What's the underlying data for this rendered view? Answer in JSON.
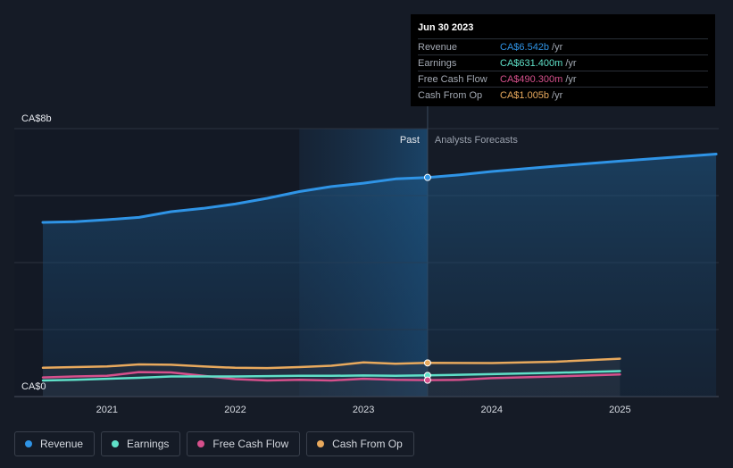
{
  "chart_data": {
    "type": "line",
    "y_axis": {
      "top_label": "CA$8b",
      "bottom_label": "CA$0",
      "ylim": [
        0,
        8
      ]
    },
    "x_ticks": [
      "2021",
      "2022",
      "2023",
      "2024",
      "2025"
    ],
    "past_label": "Past",
    "forecast_label": "Analysts Forecasts",
    "divider_date": 2023.5,
    "series": [
      {
        "name": "Revenue",
        "color": "#2f94e6",
        "points": [
          [
            2020.5,
            5.2
          ],
          [
            2020.75,
            5.22
          ],
          [
            2021.0,
            5.28
          ],
          [
            2021.25,
            5.35
          ],
          [
            2021.5,
            5.52
          ],
          [
            2021.75,
            5.62
          ],
          [
            2022.0,
            5.75
          ],
          [
            2022.25,
            5.92
          ],
          [
            2022.5,
            6.12
          ],
          [
            2022.75,
            6.27
          ],
          [
            2023.0,
            6.37
          ],
          [
            2023.25,
            6.5
          ],
          [
            2023.5,
            6.542
          ],
          [
            2023.75,
            6.62
          ],
          [
            2024.0,
            6.72
          ],
          [
            2024.5,
            6.88
          ],
          [
            2025.0,
            7.03
          ],
          [
            2025.5,
            7.17
          ],
          [
            2025.75,
            7.24
          ]
        ]
      },
      {
        "name": "Earnings",
        "color": "#5fe0c8",
        "points": [
          [
            2020.5,
            0.48
          ],
          [
            2020.75,
            0.5
          ],
          [
            2021.0,
            0.53
          ],
          [
            2021.25,
            0.56
          ],
          [
            2021.5,
            0.6
          ],
          [
            2021.75,
            0.6
          ],
          [
            2022.0,
            0.6
          ],
          [
            2022.25,
            0.61
          ],
          [
            2022.5,
            0.62
          ],
          [
            2022.75,
            0.62
          ],
          [
            2023.0,
            0.63
          ],
          [
            2023.25,
            0.62
          ],
          [
            2023.5,
            0.631
          ],
          [
            2024.0,
            0.67
          ],
          [
            2024.5,
            0.71
          ],
          [
            2025.0,
            0.76
          ]
        ]
      },
      {
        "name": "Free Cash Flow",
        "color": "#d6508c",
        "points": [
          [
            2020.5,
            0.57
          ],
          [
            2020.75,
            0.6
          ],
          [
            2021.0,
            0.62
          ],
          [
            2021.25,
            0.73
          ],
          [
            2021.5,
            0.72
          ],
          [
            2021.75,
            0.62
          ],
          [
            2022.0,
            0.52
          ],
          [
            2022.25,
            0.48
          ],
          [
            2022.5,
            0.5
          ],
          [
            2022.75,
            0.48
          ],
          [
            2023.0,
            0.53
          ],
          [
            2023.25,
            0.5
          ],
          [
            2023.5,
            0.49
          ],
          [
            2023.75,
            0.5
          ],
          [
            2024.0,
            0.55
          ],
          [
            2024.5,
            0.6
          ],
          [
            2025.0,
            0.66
          ]
        ]
      },
      {
        "name": "Cash From Op",
        "color": "#e8a95d",
        "points": [
          [
            2020.5,
            0.86
          ],
          [
            2020.75,
            0.88
          ],
          [
            2021.0,
            0.9
          ],
          [
            2021.25,
            0.96
          ],
          [
            2021.5,
            0.95
          ],
          [
            2021.75,
            0.9
          ],
          [
            2022.0,
            0.86
          ],
          [
            2022.25,
            0.85
          ],
          [
            2022.5,
            0.88
          ],
          [
            2022.75,
            0.92
          ],
          [
            2023.0,
            1.02
          ],
          [
            2023.25,
            0.98
          ],
          [
            2023.5,
            1.005
          ],
          [
            2024.0,
            1.0
          ],
          [
            2024.5,
            1.04
          ],
          [
            2025.0,
            1.13
          ]
        ]
      }
    ]
  },
  "tooltip": {
    "date": "Jun 30 2023",
    "rows": [
      {
        "name": "Revenue",
        "value": "CA$6.542b",
        "unit": "/yr",
        "color": "#2f94e6"
      },
      {
        "name": "Earnings",
        "value": "CA$631.400m",
        "unit": "/yr",
        "color": "#5fe0c8"
      },
      {
        "name": "Free Cash Flow",
        "value": "CA$490.300m",
        "unit": "/yr",
        "color": "#d6508c"
      },
      {
        "name": "Cash From Op",
        "value": "CA$1.005b",
        "unit": "/yr",
        "color": "#e8a95d"
      }
    ]
  },
  "legend": [
    {
      "label": "Revenue",
      "color": "#2f94e6"
    },
    {
      "label": "Earnings",
      "color": "#5fe0c8"
    },
    {
      "label": "Free Cash Flow",
      "color": "#d6508c"
    },
    {
      "label": "Cash From Op",
      "color": "#e8a95d"
    }
  ]
}
